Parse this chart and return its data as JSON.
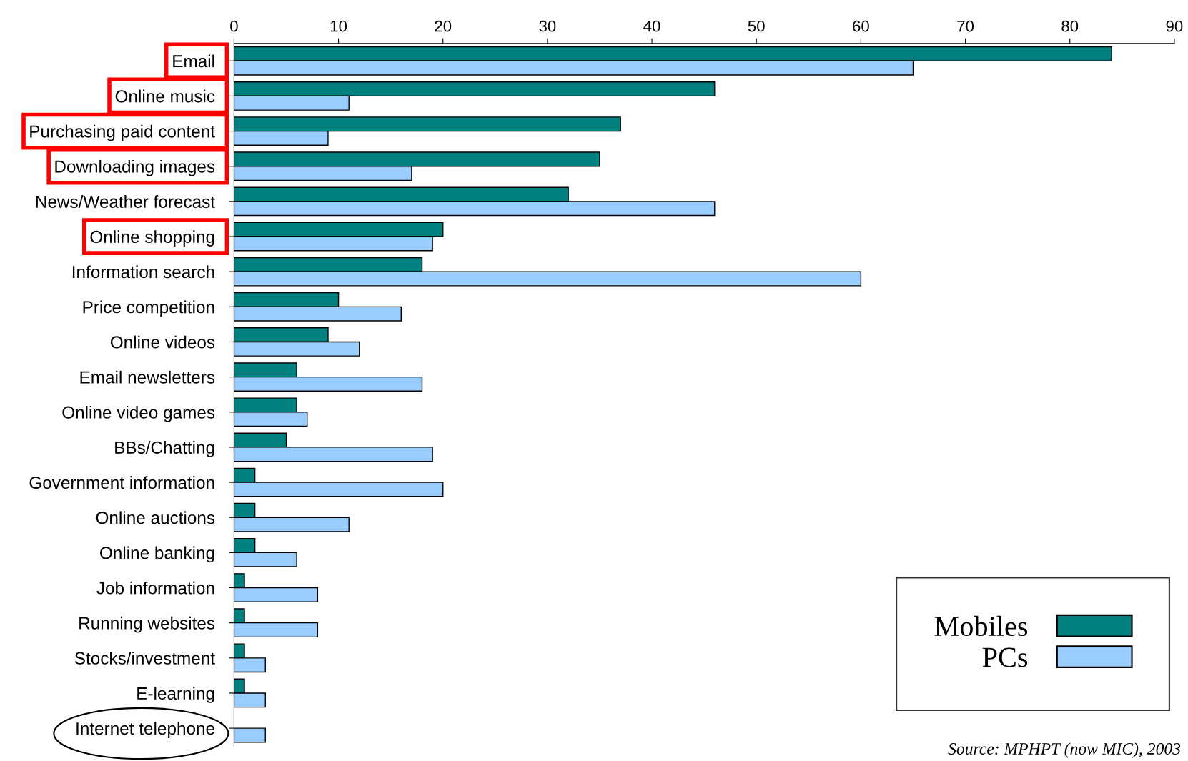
{
  "chart_data": {
    "type": "bar",
    "orientation": "horizontal",
    "categories": [
      "Email",
      "Online music",
      "Purchasing paid content",
      "Downloading images",
      "News/Weather forecast",
      "Online shopping",
      "Information search",
      "Price competition",
      "Online videos",
      "Email newsletters",
      "Online video games",
      "BBs/Chatting",
      "Government information",
      "Online auctions",
      "Online banking",
      "Job information",
      "Running websites",
      "Stocks/investment",
      "E-learning",
      "Internet telephone"
    ],
    "series": [
      {
        "name": "Mobiles",
        "color": "#008080",
        "values": [
          84,
          46,
          37,
          35,
          32,
          20,
          18,
          10,
          9,
          6,
          6,
          5,
          2,
          2,
          2,
          1,
          1,
          1,
          1,
          0
        ]
      },
      {
        "name": "PCs",
        "color": "#99ccff",
        "values": [
          65,
          11,
          9,
          17,
          46,
          19,
          60,
          16,
          12,
          18,
          7,
          19,
          20,
          11,
          6,
          8,
          8,
          3,
          3,
          3
        ]
      }
    ],
    "xlim": [
      0,
      90
    ],
    "xticks": [
      0,
      10,
      20,
      30,
      40,
      50,
      60,
      70,
      80,
      90
    ],
    "grid": false,
    "legend": "bottom right",
    "annotations": [
      "Source: MPHPT (now MIC), 2003"
    ]
  }
}
